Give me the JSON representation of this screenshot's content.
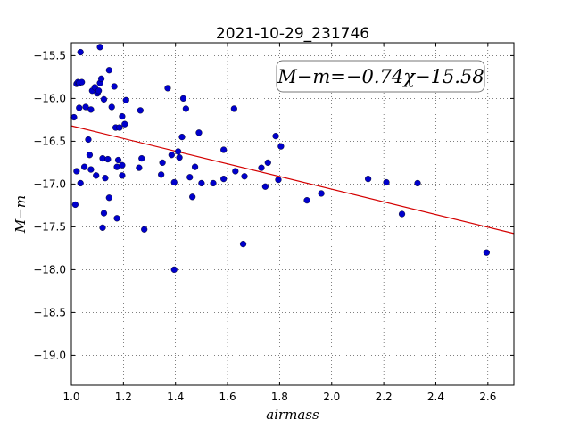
{
  "chart_data": {
    "type": "scatter",
    "title": "2021-10-29_231746",
    "xlabel": "airmass",
    "ylabel": "M−m",
    "xlim": [
      1.0,
      2.7
    ],
    "ylim": [
      -19.35,
      -15.35
    ],
    "y_inverted": true,
    "grid": true,
    "xticks": [
      1.0,
      1.2,
      1.4,
      1.6,
      1.8,
      2.0,
      2.2,
      2.4,
      2.6
    ],
    "xtick_labels": [
      "1.0",
      "1.2",
      "1.4",
      "1.6",
      "1.8",
      "2.0",
      "2.2",
      "2.4",
      "2.6"
    ],
    "yticks": [
      -15.5,
      -16.0,
      -16.5,
      -17.0,
      -17.5,
      -18.0,
      -18.5,
      -19.0
    ],
    "ytick_labels": [
      "−15.5",
      "−16.0",
      "−16.5",
      "−17.0",
      "−17.5",
      "−18.0",
      "−18.5",
      "−19.0"
    ],
    "annotation": "M−m=−0.74χ−15.58",
    "fit": {
      "slope": -0.74,
      "intercept": -15.58,
      "color": "#d40000"
    },
    "point_color": "#0000cc",
    "series": [
      {
        "points": [
          [
            1.01,
            -16.22
          ],
          [
            1.02,
            -15.83
          ],
          [
            1.025,
            -15.81
          ],
          [
            1.03,
            -15.82
          ],
          [
            1.035,
            -15.46
          ],
          [
            1.04,
            -15.81
          ],
          [
            1.03,
            -16.11
          ],
          [
            1.055,
            -16.1
          ],
          [
            1.075,
            -16.13
          ],
          [
            1.08,
            -15.91
          ],
          [
            1.09,
            -15.87
          ],
          [
            1.1,
            -15.94
          ],
          [
            1.105,
            -15.91
          ],
          [
            1.11,
            -15.82
          ],
          [
            1.115,
            -15.77
          ],
          [
            1.11,
            -15.4
          ],
          [
            1.125,
            -16.01
          ],
          [
            1.145,
            -15.67
          ],
          [
            1.155,
            -16.1
          ],
          [
            1.165,
            -15.86
          ],
          [
            1.17,
            -16.34
          ],
          [
            1.185,
            -16.34
          ],
          [
            1.195,
            -16.21
          ],
          [
            1.205,
            -16.3
          ],
          [
            1.21,
            -16.02
          ],
          [
            1.265,
            -16.14
          ],
          [
            1.02,
            -16.85
          ],
          [
            1.035,
            -16.99
          ],
          [
            1.05,
            -16.8
          ],
          [
            1.065,
            -16.48
          ],
          [
            1.07,
            -16.66
          ],
          [
            1.075,
            -16.83
          ],
          [
            1.095,
            -16.9
          ],
          [
            1.12,
            -16.7
          ],
          [
            1.13,
            -16.93
          ],
          [
            1.14,
            -16.71
          ],
          [
            1.145,
            -17.16
          ],
          [
            1.175,
            -16.8
          ],
          [
            1.18,
            -16.72
          ],
          [
            1.195,
            -16.9
          ],
          [
            1.195,
            -16.78
          ],
          [
            1.015,
            -17.24
          ],
          [
            1.12,
            -17.51
          ],
          [
            1.125,
            -17.34
          ],
          [
            1.175,
            -17.4
          ],
          [
            1.26,
            -16.81
          ],
          [
            1.27,
            -16.7
          ],
          [
            1.28,
            -17.53
          ],
          [
            1.345,
            -16.89
          ],
          [
            1.35,
            -16.75
          ],
          [
            1.37,
            -15.88
          ],
          [
            1.385,
            -16.66
          ],
          [
            1.395,
            -16.98
          ],
          [
            1.395,
            -18.0
          ],
          [
            1.41,
            -16.62
          ],
          [
            1.415,
            -16.69
          ],
          [
            1.425,
            -16.45
          ],
          [
            1.43,
            -16.0
          ],
          [
            1.44,
            -16.12
          ],
          [
            1.455,
            -16.92
          ],
          [
            1.465,
            -17.15
          ],
          [
            1.475,
            -16.8
          ],
          [
            1.49,
            -16.4
          ],
          [
            1.5,
            -16.99
          ],
          [
            1.545,
            -16.99
          ],
          [
            1.585,
            -16.6
          ],
          [
            1.585,
            -16.94
          ],
          [
            1.625,
            -16.12
          ],
          [
            1.63,
            -16.85
          ],
          [
            1.66,
            -17.7
          ],
          [
            1.665,
            -16.91
          ],
          [
            1.73,
            -16.81
          ],
          [
            1.745,
            -17.03
          ],
          [
            1.755,
            -16.75
          ],
          [
            1.785,
            -16.44
          ],
          [
            1.795,
            -16.95
          ],
          [
            1.805,
            -16.56
          ],
          [
            1.905,
            -17.19
          ],
          [
            1.96,
            -17.11
          ],
          [
            2.14,
            -16.94
          ],
          [
            2.21,
            -16.98
          ],
          [
            2.27,
            -17.35
          ],
          [
            2.33,
            -16.99
          ],
          [
            2.595,
            -17.8
          ]
        ]
      }
    ]
  }
}
